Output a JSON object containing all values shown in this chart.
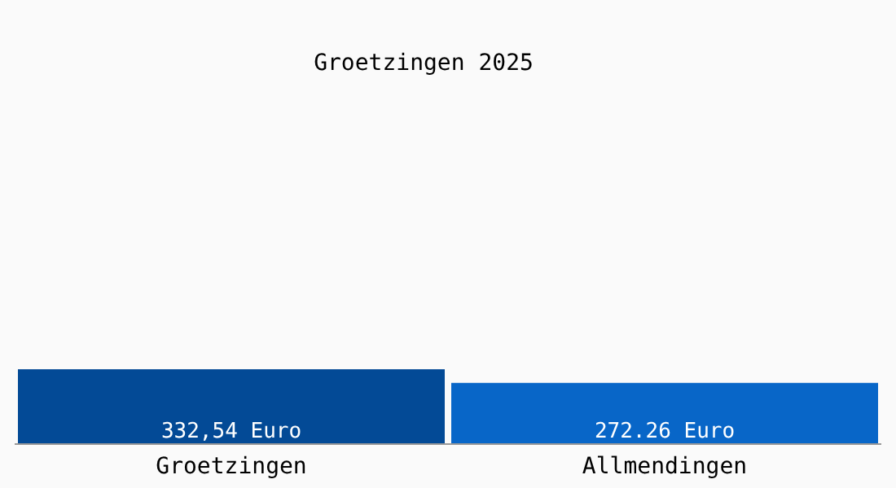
{
  "chart_data": {
    "type": "bar",
    "title": "Groetzingen 2025",
    "categories": [
      "Groetzingen",
      "Allmendingen"
    ],
    "values": [
      332.54,
      272.26
    ],
    "colors": [
      "#034a96",
      "#0866c8"
    ],
    "value_labels": [
      "332,54 Euro",
      "272.26 Euro"
    ],
    "grid": false,
    "legend": false
  }
}
